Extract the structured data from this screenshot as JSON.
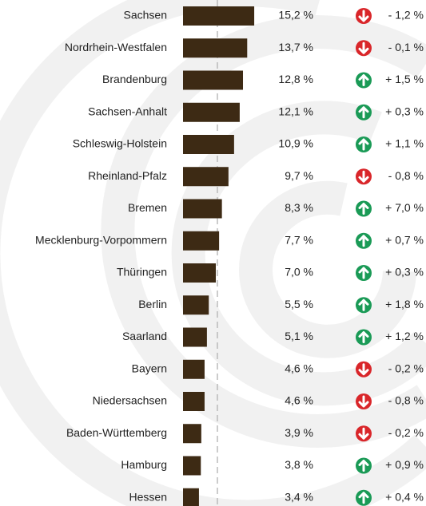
{
  "chart_data": {
    "type": "bar",
    "categories": [
      "Sachsen",
      "Nordrhein-Westfalen",
      "Brandenburg",
      "Sachsen-Anhalt",
      "Schleswig-Holstein",
      "Rheinland-Pfalz",
      "Bremen",
      "Mecklenburg-Vorpommern",
      "Thüringen",
      "Berlin",
      "Saarland",
      "Bayern",
      "Niedersachsen",
      "Baden-Württemberg",
      "Hamburg",
      "Hessen"
    ],
    "values": [
      15.2,
      13.7,
      12.8,
      12.1,
      10.9,
      9.7,
      8.3,
      7.7,
      7.0,
      5.5,
      5.1,
      4.6,
      4.6,
      3.9,
      3.8,
      3.4
    ],
    "value_labels": [
      "15,2 %",
      "13,7 %",
      "12,8 %",
      "12,1 %",
      "10,9 %",
      "9,7 %",
      "8,3 %",
      "7,7 %",
      "7,0 %",
      "5,5 %",
      "5,1 %",
      "4,6 %",
      "4,6 %",
      "3,9 %",
      "3,8 %",
      "3,4 %"
    ],
    "color": "#3d2a14",
    "change": {
      "values": [
        -1.2,
        -0.1,
        1.5,
        0.3,
        1.1,
        -0.8,
        7.0,
        0.7,
        0.3,
        1.8,
        1.2,
        -0.2,
        -0.8,
        -0.2,
        0.9,
        0.4
      ],
      "value_labels": [
        "- 1,2 %",
        "- 0,1 %",
        "+ 1,5 %",
        "+ 0,3 %",
        "+ 1,1 %",
        "- 0,8 %",
        "+ 7,0 %",
        "+ 0,7 %",
        "+ 0,3 %",
        "+ 1,8 %",
        "+ 1,2 %",
        "- 0,2 %",
        "- 0,8 %",
        "- 0,2 %",
        "+ 0,9 %",
        "+ 0,4 %"
      ],
      "up_color": "#1a9a56",
      "down_color": "#d9262a"
    }
  }
}
